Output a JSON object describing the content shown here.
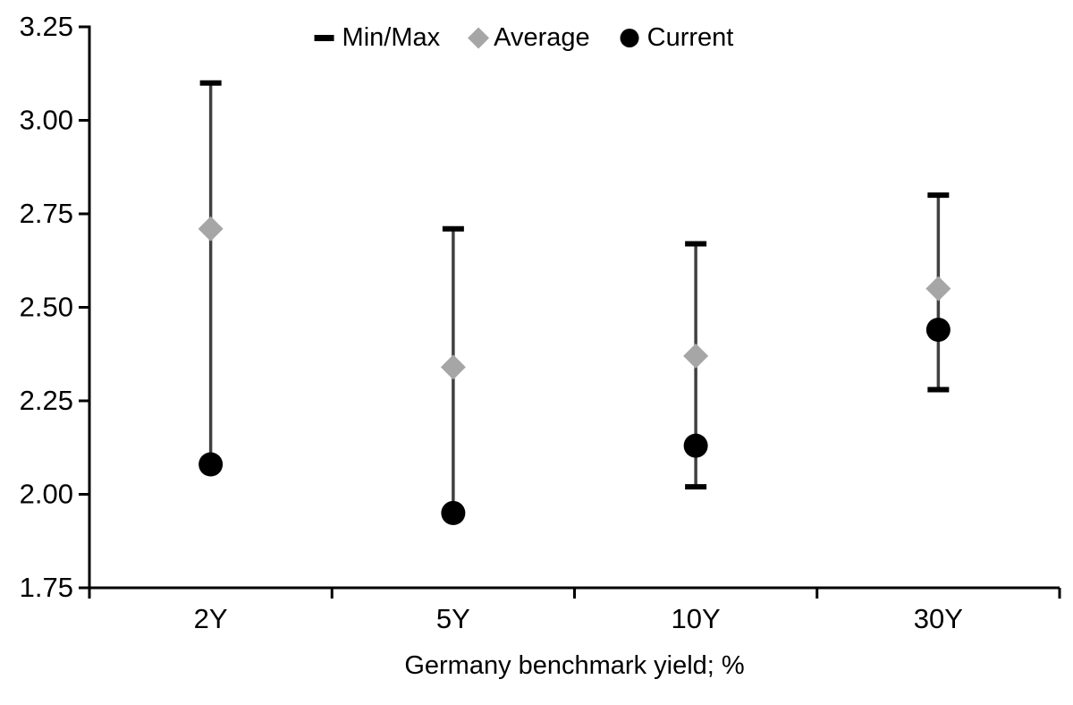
{
  "chart_data": {
    "type": "scatter",
    "subtype": "min-max-range-with-markers",
    "title": "",
    "xlabel": "Germany benchmark yield; %",
    "ylabel": "",
    "categories": [
      "2Y",
      "5Y",
      "10Y",
      "30Y"
    ],
    "series": [
      {
        "name": "Min/Max",
        "marker": "dash-cap",
        "min": [
          2.08,
          1.95,
          2.02,
          2.28
        ],
        "max": [
          3.1,
          2.71,
          2.67,
          2.8
        ]
      },
      {
        "name": "Average",
        "marker": "diamond",
        "values": [
          2.71,
          2.34,
          2.37,
          2.55
        ]
      },
      {
        "name": "Current",
        "marker": "circle",
        "values": [
          2.08,
          1.95,
          2.13,
          2.44
        ]
      }
    ],
    "ylim": [
      1.75,
      3.25
    ],
    "ytick_step": 0.25,
    "yticks": [
      "1.75",
      "2.00",
      "2.25",
      "2.50",
      "2.75",
      "3.00",
      "3.25"
    ],
    "grid": "off",
    "legend_position": "top-center",
    "legend": [
      {
        "label": "Min/Max",
        "marker": "dash",
        "color": "#000000"
      },
      {
        "label": "Average",
        "marker": "diamond",
        "color": "#a6a6a6"
      },
      {
        "label": "Current",
        "marker": "circle",
        "color": "#000000"
      }
    ],
    "colors": {
      "range_line": "#404040",
      "cap": "#000000",
      "average": "#a6a6a6",
      "current": "#000000",
      "axis": "#000000",
      "background": "#ffffff"
    }
  }
}
